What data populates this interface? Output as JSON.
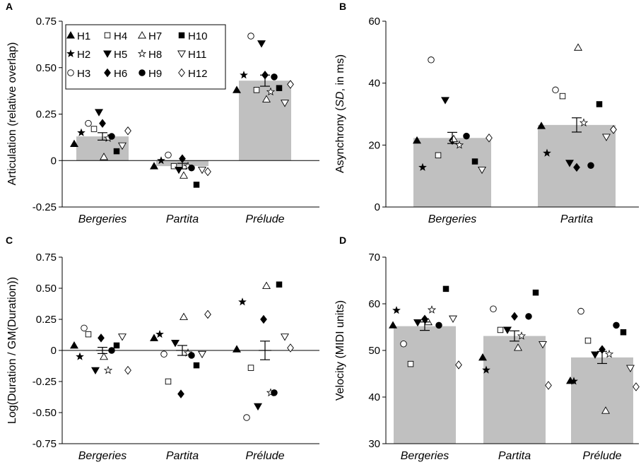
{
  "chart_data": [
    {
      "panel": "A",
      "type": "bar",
      "ylabel": "Articulation (relative overlap)",
      "ylim": [
        -0.25,
        0.75
      ],
      "yticks": [
        "-0.25",
        "0",
        "0.25",
        "0.50",
        "0.75"
      ],
      "categories": [
        "Bergeries",
        "Partita",
        "Prélude"
      ],
      "means": [
        0.13,
        -0.03,
        0.43
      ],
      "sem": [
        0.02,
        0.015,
        0.03
      ],
      "points": [
        [
          0.09,
          0.15,
          0.2,
          0.17,
          0.26,
          0.2,
          0.02,
          0.12,
          0.13,
          0.05,
          0.08,
          0.16
        ],
        [
          -0.03,
          0.0,
          0.03,
          -0.03,
          -0.05,
          0.01,
          -0.08,
          -0.03,
          -0.04,
          -0.13,
          -0.05,
          -0.06
        ],
        [
          0.38,
          0.46,
          0.67,
          0.38,
          0.63,
          0.46,
          0.33,
          0.37,
          0.45,
          0.39,
          0.31,
          0.41
        ]
      ],
      "legend": [
        "H1",
        "H2",
        "H3",
        "H4",
        "H5",
        "H6",
        "H7",
        "H8",
        "H9",
        "H10",
        "H11",
        "H12"
      ]
    },
    {
      "panel": "B",
      "type": "bar",
      "ylabel": "Asynchrony (SD, in ms)",
      "ylim": [
        0,
        60
      ],
      "yticks": [
        "0",
        "20",
        "40",
        "60"
      ],
      "categories": [
        "Bergeries",
        "Partita"
      ],
      "means": [
        22.3,
        26.5
      ],
      "sem": [
        1.8,
        2.3
      ],
      "points": [
        [
          21.5,
          12.8,
          47.5,
          16.7,
          34.5,
          21.5,
          22.0,
          20.0,
          22.9,
          14.7,
          12.0,
          22.3
        ],
        [
          26.2,
          17.4,
          37.8,
          35.8,
          14.2,
          12.8,
          51.5,
          27.2,
          13.4,
          33.2,
          22.6,
          25.0
        ]
      ]
    },
    {
      "panel": "C",
      "type": "scatter",
      "ylabel": "Log(Duration / GM(Duration))",
      "ylim": [
        -0.75,
        0.75
      ],
      "yticks": [
        "-0.75",
        "-0.50",
        "-0.25",
        "0",
        "0.25",
        "0.50",
        "0.75"
      ],
      "categories": [
        "Bergeries",
        "Partita",
        "Prélude"
      ],
      "means": [
        0.0,
        0.0,
        0.0
      ],
      "sem": [
        0.025,
        0.04,
        0.075
      ],
      "points": [
        [
          0.04,
          -0.05,
          0.18,
          0.13,
          -0.16,
          0.1,
          -0.05,
          -0.16,
          0.0,
          0.04,
          0.11,
          -0.16
        ],
        [
          0.1,
          0.13,
          -0.03,
          -0.25,
          0.06,
          -0.35,
          0.27,
          -0.02,
          -0.04,
          -0.12,
          -0.03,
          0.29
        ],
        [
          0.01,
          0.39,
          -0.54,
          -0.14,
          -0.45,
          0.25,
          0.52,
          -0.34,
          -0.34,
          0.53,
          0.11,
          0.02
        ]
      ]
    },
    {
      "panel": "D",
      "type": "bar",
      "ylabel": "Velocity (MIDI units)",
      "ylim": [
        30,
        70
      ],
      "yticks": [
        "30",
        "40",
        "50",
        "60",
        "70"
      ],
      "categories": [
        "Bergeries",
        "Partita",
        "Prélude"
      ],
      "means": [
        55.2,
        53.1,
        48.5
      ],
      "sem": [
        0.9,
        1.1,
        1.3
      ],
      "points": [
        [
          55.4,
          58.6,
          51.4,
          47.1,
          56.0,
          56.7,
          56.1,
          58.7,
          55.4,
          63.2,
          56.8,
          46.9
        ],
        [
          48.5,
          45.8,
          58.9,
          54.4,
          54.4,
          57.3,
          50.6,
          53.1,
          57.3,
          62.4,
          51.3,
          42.5
        ],
        [
          43.5,
          43.4,
          58.4,
          52.1,
          49.1,
          50.2,
          37.1,
          49.2,
          55.4,
          53.9,
          46.2,
          42.2
        ]
      ]
    }
  ]
}
